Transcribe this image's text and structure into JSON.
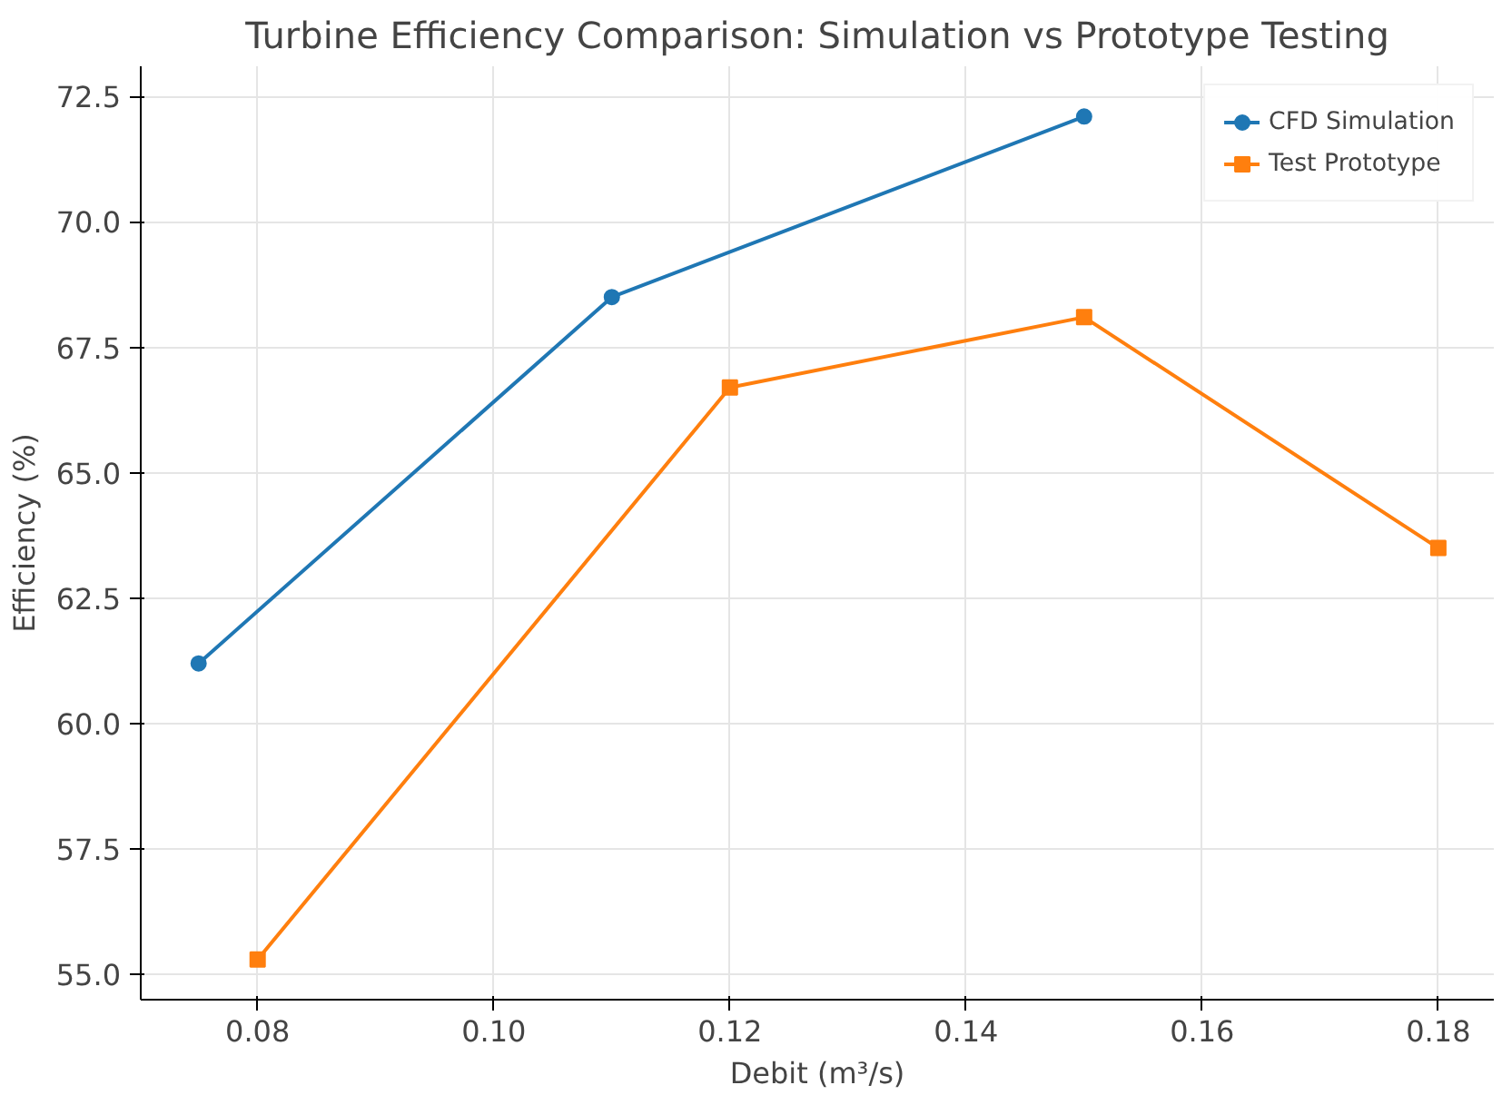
{
  "chart_data": {
    "type": "line",
    "title": "Turbine Efficiency Comparison: Simulation vs Prototype Testing",
    "xlabel": "Debit (m³/s)",
    "ylabel": "Efficiency (%)",
    "xlim": [
      0.0701,
      0.1847
    ],
    "xticks": [
      {
        "value": 0.08,
        "label": "0.08"
      },
      {
        "value": 0.1,
        "label": "0.10"
      },
      {
        "value": 0.12,
        "label": "0.12"
      },
      {
        "value": 0.14,
        "label": "0.14"
      },
      {
        "value": 0.16,
        "label": "0.16"
      },
      {
        "value": 0.18,
        "label": "0.18"
      }
    ],
    "ylim": [
      54.5,
      73.1
    ],
    "yticks": [
      {
        "value": 55,
        "label": "55.0"
      },
      {
        "value": 57.5,
        "label": "57.5"
      },
      {
        "value": 60,
        "label": "60.0"
      },
      {
        "value": 62.5,
        "label": "62.5"
      },
      {
        "value": 65,
        "label": "65.0"
      },
      {
        "value": 67.5,
        "label": "67.5"
      },
      {
        "value": 70,
        "label": "70.0"
      },
      {
        "value": 72.5,
        "label": "72.5"
      }
    ],
    "grid": true,
    "legend": "top right",
    "line_style": "solid",
    "series": [
      {
        "name": "CFD Simulation",
        "color": "#1f77b4",
        "marker": "circle",
        "x": [
          0.075,
          0.11,
          0.15
        ],
        "values": [
          61.2,
          68.5,
          72.1
        ]
      },
      {
        "name": "Test Prototype",
        "color": "#ff7f0e",
        "marker": "square",
        "x": [
          0.08,
          0.12,
          0.15,
          0.18
        ],
        "values": [
          55.3,
          66.7,
          68.1,
          63.5
        ]
      }
    ]
  }
}
